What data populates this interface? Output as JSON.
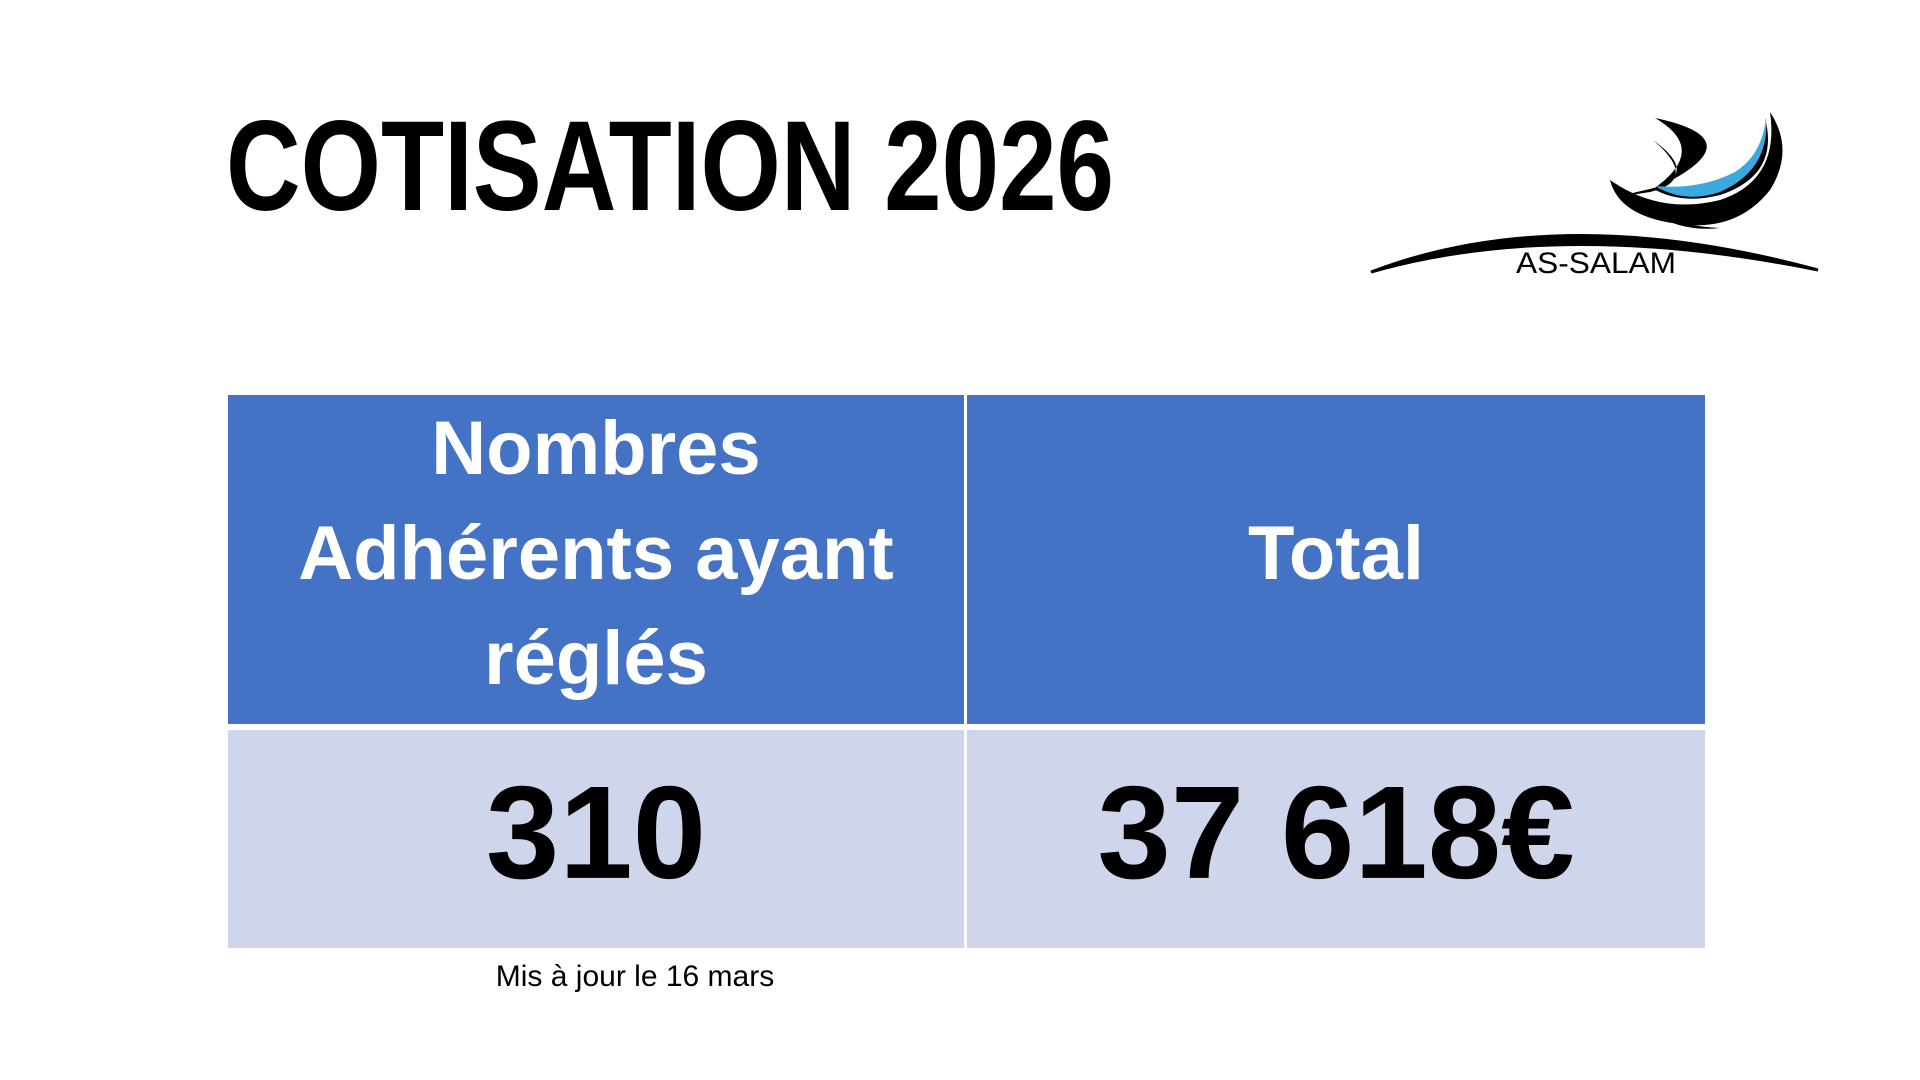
{
  "header": {
    "title": "COTISATION 2026",
    "logo": "AS-SALAM"
  },
  "table": {
    "header": [
      [
        "Nombres",
        "Adhérents ayant",
        "réglés"
      ],
      [
        "Total"
      ]
    ],
    "rows": [
      [
        "310",
        "37 618€"
      ]
    ]
  },
  "note": "Mis à jour le 16 mars"
}
